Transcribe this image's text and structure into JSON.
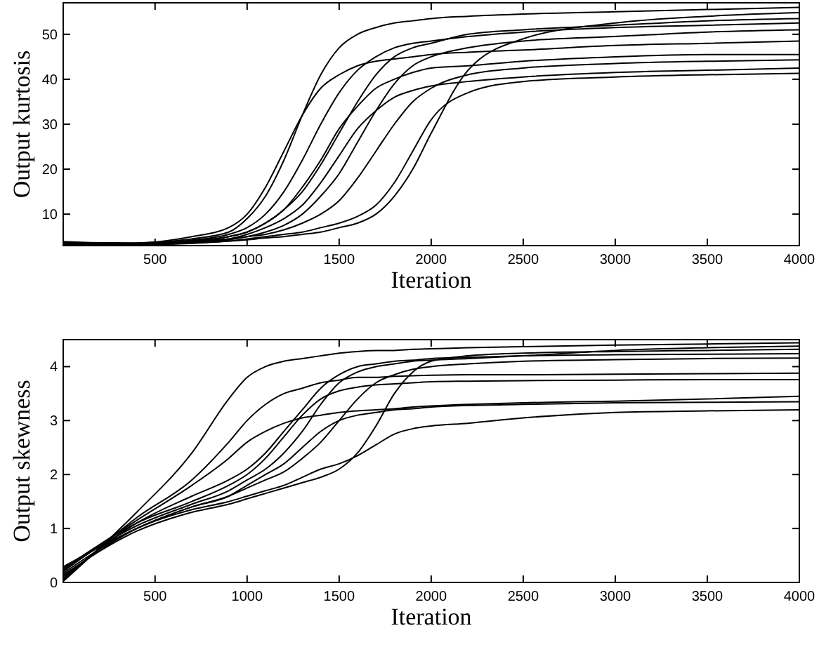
{
  "chart_data": [
    {
      "type": "line",
      "xlabel": "Iteration",
      "ylabel": "Output kurtosis",
      "xlim": [
        1,
        4000
      ],
      "ylim": [
        3,
        57
      ],
      "xticks": [
        500,
        1000,
        1500,
        2000,
        2500,
        3000,
        3500,
        4000
      ],
      "yticks": [
        10,
        20,
        30,
        40,
        50
      ],
      "x": [
        1,
        400,
        700,
        900,
        1000,
        1100,
        1200,
        1300,
        1400,
        1500,
        1600,
        1700,
        1800,
        1900,
        2000,
        2200,
        2500,
        3000,
        3500,
        4000
      ],
      "series": [
        {
          "color": "#000000",
          "values": [
            3,
            3.5,
            4.5,
            6,
            9,
            14,
            22,
            32,
            41,
            47,
            50,
            51.5,
            52.5,
            53,
            53.5,
            54,
            54.5,
            55,
            55.5,
            56
          ]
        },
        {
          "color": "#000000",
          "values": [
            3.4,
            3.5,
            4.2,
            5.5,
            7,
            10,
            15,
            22,
            30,
            37,
            42,
            45,
            47,
            48,
            48.5,
            49.5,
            50.5,
            51.5,
            52,
            52.5
          ]
        },
        {
          "color": "#000000",
          "values": [
            3.1,
            3.4,
            4,
            5,
            6,
            8,
            11,
            16,
            22,
            29,
            34,
            38,
            40,
            41.5,
            42.5,
            43,
            44,
            45,
            45.5,
            45.5
          ]
        },
        {
          "color": "#000000",
          "values": [
            3.3,
            3.3,
            4,
            4.5,
            5.5,
            7,
            9,
            12,
            17,
            23,
            29,
            33,
            36,
            37.5,
            38.5,
            39.5,
            40.5,
            41.5,
            42,
            42.5
          ]
        },
        {
          "color": "#000000",
          "values": [
            3.2,
            3.3,
            3.8,
            4.5,
            5,
            6,
            7.5,
            10,
            14,
            19,
            26,
            33,
            39,
            43,
            45,
            47,
            48.5,
            49.5,
            50.5,
            51
          ]
        },
        {
          "color": "#000000",
          "values": [
            3.5,
            3.2,
            3.6,
            4,
            4.5,
            5,
            5.5,
            6,
            7,
            8,
            9.5,
            12,
            17,
            24,
            31,
            37,
            39.5,
            40.5,
            41,
            41.3
          ]
        },
        {
          "color": "#000000",
          "values": [
            3.6,
            3.2,
            3.5,
            4,
            4.3,
            4.7,
            5,
            5.5,
            6,
            7,
            8,
            10,
            14,
            20,
            28,
            42,
            49,
            52.5,
            54,
            54.8
          ]
        },
        {
          "color": "#000000",
          "values": [
            3.7,
            3.6,
            5,
            7,
            10,
            16,
            24,
            32,
            38,
            41,
            43,
            44,
            44.5,
            45,
            45.5,
            46,
            46.5,
            47.5,
            48,
            48.5
          ]
        },
        {
          "color": "#000000",
          "values": [
            3.8,
            3.3,
            3.8,
            4.3,
            5,
            5.5,
            6.5,
            8,
            10,
            13,
            18,
            24,
            30,
            35,
            38,
            41,
            42.5,
            43.5,
            44,
            44.3
          ]
        },
        {
          "color": "#000000",
          "values": [
            3.9,
            3.4,
            4,
            5,
            6,
            8,
            11,
            15,
            21,
            28,
            35,
            41,
            45,
            47,
            48,
            50,
            51,
            52,
            53,
            53.5
          ]
        }
      ]
    },
    {
      "type": "line",
      "xlabel": "Iteration",
      "ylabel": "Output skewness",
      "xlim": [
        1,
        4000
      ],
      "ylim": [
        0,
        4.5
      ],
      "xticks": [
        500,
        1000,
        1500,
        2000,
        2500,
        3000,
        3500,
        4000
      ],
      "yticks": [
        0,
        1,
        2,
        3,
        4
      ],
      "x": [
        1,
        400,
        700,
        900,
        1000,
        1100,
        1200,
        1300,
        1400,
        1500,
        1600,
        1700,
        1800,
        1900,
        2000,
        2200,
        2500,
        3000,
        3500,
        4000
      ],
      "series": [
        {
          "color": "#000000",
          "values": [
            0.02,
            1.3,
            2.4,
            3.4,
            3.8,
            4.0,
            4.1,
            4.15,
            4.2,
            4.25,
            4.28,
            4.3,
            4.3,
            4.32,
            4.33,
            4.35,
            4.37,
            4.4,
            4.42,
            4.44
          ]
        },
        {
          "color": "#000000",
          "values": [
            0.05,
            1.2,
            1.9,
            2.6,
            3.0,
            3.3,
            3.5,
            3.6,
            3.7,
            3.75,
            3.8,
            3.8,
            3.82,
            3.83,
            3.84,
            3.85,
            3.85,
            3.86,
            3.87,
            3.88
          ]
        },
        {
          "color": "#000000",
          "values": [
            0.08,
            1.1,
            1.6,
            1.9,
            2.1,
            2.4,
            2.8,
            3.2,
            3.6,
            3.85,
            4.0,
            4.05,
            4.1,
            4.12,
            4.15,
            4.17,
            4.2,
            4.22,
            4.23,
            4.24
          ]
        },
        {
          "color": "#000000",
          "values": [
            0.11,
            1.0,
            1.4,
            1.6,
            1.8,
            2.0,
            2.2,
            2.5,
            2.8,
            3.0,
            3.1,
            3.15,
            3.2,
            3.22,
            3.25,
            3.28,
            3.3,
            3.33,
            3.34,
            3.35
          ]
        },
        {
          "color": "#000000",
          "values": [
            0.14,
            0.95,
            1.3,
            1.45,
            1.55,
            1.65,
            1.75,
            1.85,
            1.95,
            2.1,
            2.4,
            2.9,
            3.5,
            3.9,
            4.1,
            4.2,
            4.25,
            4.28,
            4.3,
            4.32
          ]
        },
        {
          "color": "#000000",
          "values": [
            0.17,
            1.0,
            1.35,
            1.5,
            1.6,
            1.7,
            1.8,
            1.95,
            2.1,
            2.2,
            2.35,
            2.55,
            2.75,
            2.85,
            2.9,
            2.95,
            3.05,
            3.15,
            3.18,
            3.2
          ]
        },
        {
          "color": "#000000",
          "values": [
            0.2,
            1.1,
            1.5,
            1.8,
            2.0,
            2.3,
            2.7,
            3.1,
            3.4,
            3.55,
            3.62,
            3.66,
            3.68,
            3.7,
            3.72,
            3.73,
            3.74,
            3.75,
            3.76,
            3.76
          ]
        },
        {
          "color": "#000000",
          "values": [
            0.23,
            1.05,
            1.45,
            1.7,
            1.9,
            2.1,
            2.4,
            2.8,
            3.3,
            3.7,
            3.9,
            4.0,
            4.05,
            4.1,
            4.12,
            4.15,
            4.2,
            4.3,
            4.35,
            4.38
          ]
        },
        {
          "color": "#000000",
          "values": [
            0.26,
            1.15,
            1.8,
            2.3,
            2.6,
            2.8,
            2.95,
            3.05,
            3.1,
            3.15,
            3.18,
            3.2,
            3.22,
            3.25,
            3.27,
            3.3,
            3.33,
            3.36,
            3.4,
            3.45
          ]
        },
        {
          "color": "#000000",
          "values": [
            0.29,
            1.0,
            1.4,
            1.6,
            1.75,
            1.9,
            2.05,
            2.3,
            2.6,
            3.0,
            3.4,
            3.7,
            3.85,
            3.95,
            4.0,
            4.05,
            4.1,
            4.13,
            4.15,
            4.16
          ]
        }
      ]
    }
  ]
}
